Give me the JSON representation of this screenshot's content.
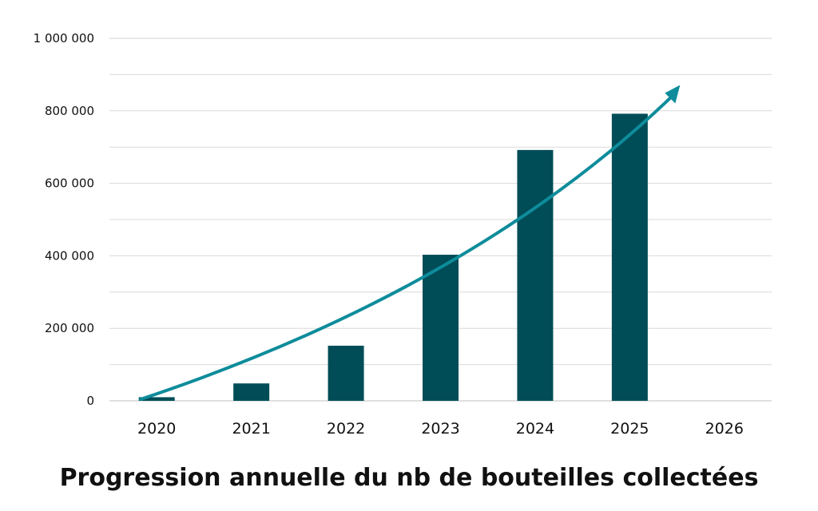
{
  "chart_data": {
    "type": "bar",
    "title": "Progression annuelle du nb de bouteilles collectées",
    "xlabel": "",
    "ylabel": "",
    "categories": [
      "2020",
      "2021",
      "2022",
      "2023",
      "2024",
      "2025",
      "2026"
    ],
    "values": [
      10000,
      48000,
      152000,
      403000,
      692000,
      792000,
      null
    ],
    "ylim": [
      0,
      1000000
    ],
    "yticks": [
      0,
      200000,
      400000,
      600000,
      800000,
      1000000
    ],
    "ytick_labels": [
      "0",
      "200 000",
      "400 000",
      "600 000",
      "800 000",
      "1 000 000"
    ],
    "grid": true,
    "legend": "none",
    "trend_arrow": true,
    "colors": {
      "bar": "#004d57",
      "trend": "#0e8c9b",
      "grid": "#d9d9d9",
      "axis": "#bfbfbf"
    }
  }
}
